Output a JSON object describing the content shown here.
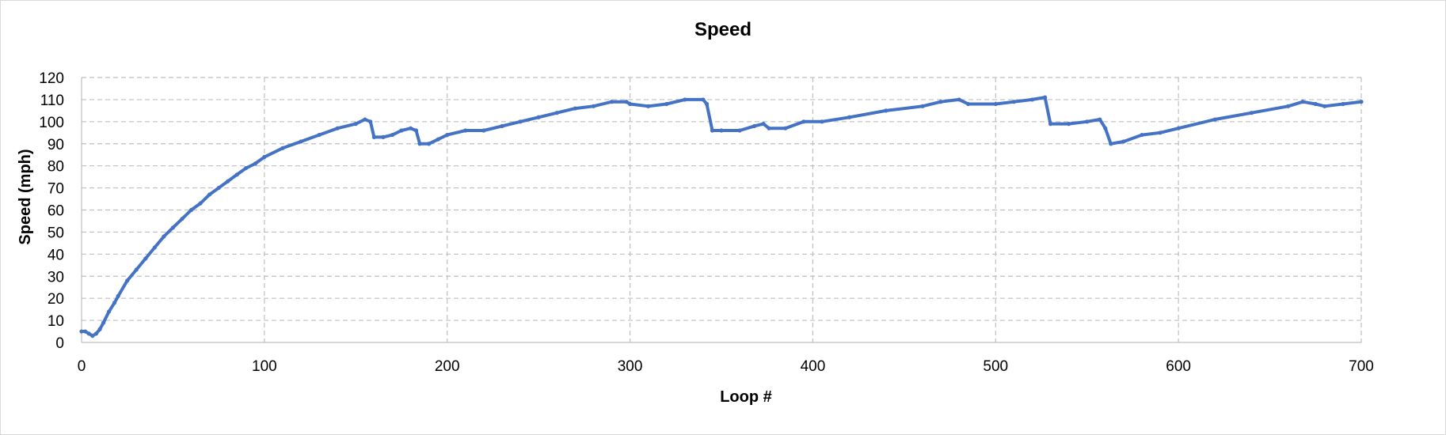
{
  "chart_data": {
    "type": "scatter",
    "title": "Speed",
    "xlabel": "Loop #",
    "ylabel": "Speed (mph)",
    "xlim": [
      0,
      700
    ],
    "ylim": [
      0,
      120
    ],
    "xticks": [
      0,
      100,
      200,
      300,
      400,
      500,
      600,
      700
    ],
    "yticks": [
      0,
      10,
      20,
      30,
      40,
      50,
      60,
      70,
      80,
      90,
      100,
      110,
      120
    ],
    "grid": true,
    "grid_style": "dashed",
    "legend": "none",
    "series_color": "#4472C4",
    "series": [
      {
        "points": [
          [
            0,
            5
          ],
          [
            2,
            5
          ],
          [
            4,
            4
          ],
          [
            6,
            3
          ],
          [
            8,
            4
          ],
          [
            10,
            6
          ],
          [
            12,
            9
          ],
          [
            15,
            14
          ],
          [
            18,
            18
          ],
          [
            20,
            21
          ],
          [
            25,
            28
          ],
          [
            30,
            33
          ],
          [
            35,
            38
          ],
          [
            40,
            43
          ],
          [
            45,
            48
          ],
          [
            50,
            52
          ],
          [
            55,
            56
          ],
          [
            60,
            60
          ],
          [
            65,
            63
          ],
          [
            70,
            67
          ],
          [
            75,
            70
          ],
          [
            80,
            73
          ],
          [
            85,
            76
          ],
          [
            90,
            79
          ],
          [
            95,
            81
          ],
          [
            100,
            84
          ],
          [
            110,
            88
          ],
          [
            120,
            91
          ],
          [
            130,
            94
          ],
          [
            140,
            97
          ],
          [
            150,
            99
          ],
          [
            155,
            101
          ],
          [
            158,
            100
          ],
          [
            160,
            93
          ],
          [
            165,
            93
          ],
          [
            170,
            94
          ],
          [
            175,
            96
          ],
          [
            180,
            97
          ],
          [
            183,
            96
          ],
          [
            185,
            90
          ],
          [
            190,
            90
          ],
          [
            195,
            92
          ],
          [
            200,
            94
          ],
          [
            210,
            96
          ],
          [
            220,
            96
          ],
          [
            230,
            98
          ],
          [
            240,
            100
          ],
          [
            250,
            102
          ],
          [
            260,
            104
          ],
          [
            270,
            106
          ],
          [
            280,
            107
          ],
          [
            290,
            109
          ],
          [
            298,
            109
          ],
          [
            300,
            108
          ],
          [
            310,
            107
          ],
          [
            320,
            108
          ],
          [
            330,
            110
          ],
          [
            340,
            110
          ],
          [
            342,
            108
          ],
          [
            345,
            96
          ],
          [
            350,
            96
          ],
          [
            360,
            96
          ],
          [
            368,
            98
          ],
          [
            373,
            99
          ],
          [
            376,
            97
          ],
          [
            385,
            97
          ],
          [
            395,
            100
          ],
          [
            405,
            100
          ],
          [
            420,
            102
          ],
          [
            440,
            105
          ],
          [
            460,
            107
          ],
          [
            470,
            109
          ],
          [
            480,
            110
          ],
          [
            485,
            108
          ],
          [
            500,
            108
          ],
          [
            510,
            109
          ],
          [
            520,
            110
          ],
          [
            527,
            111
          ],
          [
            530,
            99
          ],
          [
            540,
            99
          ],
          [
            550,
            100
          ],
          [
            557,
            101
          ],
          [
            560,
            97
          ],
          [
            563,
            90
          ],
          [
            570,
            91
          ],
          [
            580,
            94
          ],
          [
            590,
            95
          ],
          [
            600,
            97
          ],
          [
            620,
            101
          ],
          [
            640,
            104
          ],
          [
            660,
            107
          ],
          [
            668,
            109
          ],
          [
            675,
            108
          ],
          [
            680,
            107
          ],
          [
            690,
            108
          ],
          [
            700,
            109
          ]
        ]
      }
    ]
  }
}
